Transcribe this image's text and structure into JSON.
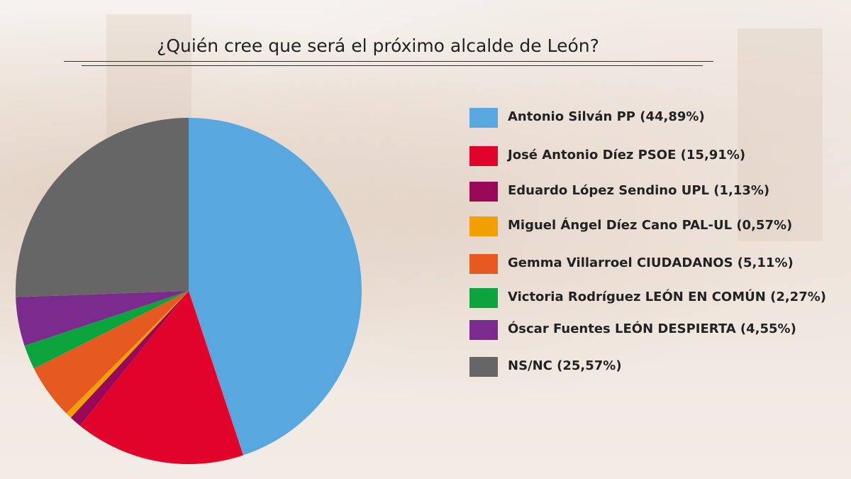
{
  "chart_data": {
    "type": "pie",
    "title": "¿Quién cree que será el próximo alcalde de León?",
    "slices": [
      {
        "label": "Antonio Silván PP (44,89%)",
        "value": 44.89,
        "color": "#58a8df"
      },
      {
        "label": "José Antonio Díez PSOE (15,91%)",
        "value": 15.91,
        "color": "#e2032b"
      },
      {
        "label": "Eduardo López Sendino UPL (1,13%)",
        "value": 1.13,
        "color": "#990858"
      },
      {
        "label": "Miguel Ángel Díez Cano PAL-UL (0,57%)",
        "value": 0.57,
        "color": "#f1a000"
      },
      {
        "label": "Gemma Villarroel CIUDADANOS (5,11%)",
        "value": 5.11,
        "color": "#e65a22"
      },
      {
        "label": "Victoria Rodríguez LEÓN EN COMÚN (2,27%)",
        "value": 2.27,
        "color": "#0ca43c"
      },
      {
        "label": "Óscar Fuentes LEÓN DESPIERTA (4,55%)",
        "value": 4.55,
        "color": "#7b2b8d"
      },
      {
        "label": "NS/NC (25,57%)",
        "value": 25.57,
        "color": "#666666"
      }
    ]
  }
}
